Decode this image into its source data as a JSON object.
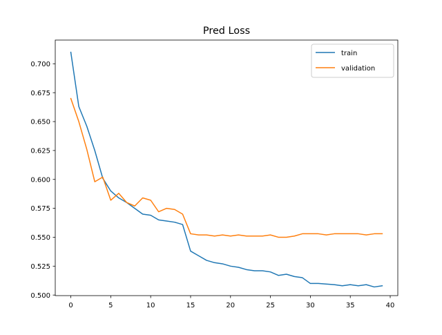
{
  "chart_data": {
    "type": "line",
    "title": "Pred Loss",
    "xlabel": "",
    "ylabel": "",
    "xlim": [
      -1.95,
      40.95
    ],
    "ylim": [
      0.4995,
      0.7205
    ],
    "xticks": [
      0,
      5,
      10,
      15,
      20,
      25,
      30,
      35,
      40
    ],
    "xtick_labels": [
      "0",
      "5",
      "10",
      "15",
      "20",
      "25",
      "30",
      "35",
      "40"
    ],
    "yticks": [
      0.5,
      0.525,
      0.55,
      0.575,
      0.6,
      0.625,
      0.65,
      0.675,
      0.7
    ],
    "ytick_labels": [
      "0.500",
      "0.525",
      "0.550",
      "0.575",
      "0.600",
      "0.625",
      "0.650",
      "0.675",
      "0.700"
    ],
    "grid": false,
    "legend_position": "top-right",
    "x": [
      0,
      1,
      2,
      3,
      4,
      5,
      6,
      7,
      8,
      9,
      10,
      11,
      12,
      13,
      14,
      15,
      16,
      17,
      18,
      19,
      20,
      21,
      22,
      23,
      24,
      25,
      26,
      27,
      28,
      29,
      30,
      31,
      32,
      33,
      34,
      35,
      36,
      37,
      38,
      39
    ],
    "series": [
      {
        "name": "train",
        "color": "#1f77b4",
        "values": [
          0.71,
          0.663,
          0.646,
          0.625,
          0.601,
          0.59,
          0.584,
          0.58,
          0.575,
          0.57,
          0.569,
          0.565,
          0.564,
          0.563,
          0.561,
          0.538,
          0.534,
          0.53,
          0.528,
          0.527,
          0.525,
          0.524,
          0.522,
          0.521,
          0.521,
          0.52,
          0.517,
          0.518,
          0.516,
          0.515,
          0.51,
          0.51,
          0.5095,
          0.509,
          0.508,
          0.509,
          0.508,
          0.509,
          0.507,
          0.508
        ]
      },
      {
        "name": "validation",
        "color": "#ff7f0e",
        "values": [
          0.67,
          0.65,
          0.626,
          0.598,
          0.602,
          0.582,
          0.588,
          0.58,
          0.577,
          0.584,
          0.582,
          0.572,
          0.575,
          0.574,
          0.57,
          0.553,
          0.552,
          0.552,
          0.551,
          0.552,
          0.551,
          0.552,
          0.551,
          0.551,
          0.551,
          0.552,
          0.55,
          0.55,
          0.551,
          0.553,
          0.553,
          0.553,
          0.552,
          0.553,
          0.553,
          0.553,
          0.553,
          0.552,
          0.553,
          0.553
        ]
      }
    ]
  }
}
